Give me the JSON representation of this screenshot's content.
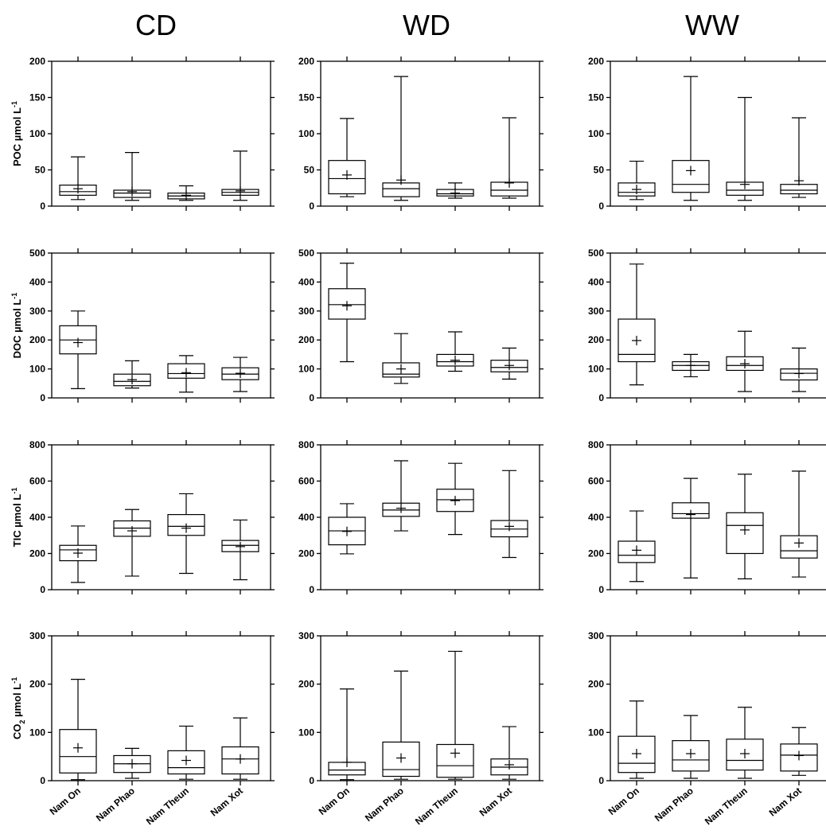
{
  "chart_data": {
    "type": "box",
    "columns": [
      "CD",
      "WD",
      "WW"
    ],
    "categories": [
      "Nam On",
      "Nam Phao",
      "Nam Theun",
      "Nam Xot"
    ],
    "rows": [
      {
        "variable": "POC",
        "ylabel_main": "POC ",
        "ylabel_sub": "",
        "ylabel_tail": "µmol L",
        "ylabel_sup": "-1",
        "ylim": [
          0,
          200
        ],
        "ticks": [
          "0",
          "50",
          "100",
          "150",
          "200"
        ],
        "tick_values": [
          0,
          50,
          100,
          150,
          200
        ],
        "panels": [
          {
            "column": "CD",
            "boxes": [
              {
                "category": "Nam On",
                "min": 9,
                "q1": 15,
                "median": 20,
                "q3": 29,
                "max": 68,
                "mean": 24
              },
              {
                "category": "Nam Phao",
                "min": 8,
                "q1": 12,
                "median": 18,
                "q3": 22,
                "max": 74,
                "mean": 20
              },
              {
                "category": "Nam Theun",
                "min": 8,
                "q1": 10,
                "median": 14,
                "q3": 18,
                "max": 28,
                "mean": 15
              },
              {
                "category": "Nam Xot",
                "min": 8,
                "q1": 15,
                "median": 19,
                "q3": 23,
                "max": 76,
                "mean": 21
              }
            ]
          },
          {
            "column": "WD",
            "boxes": [
              {
                "category": "Nam On",
                "min": 13,
                "q1": 17,
                "median": 38,
                "q3": 63,
                "max": 121,
                "mean": 43
              },
              {
                "category": "Nam Phao",
                "min": 8,
                "q1": 13,
                "median": 24,
                "q3": 32,
                "max": 179,
                "mean": 36
              },
              {
                "category": "Nam Theun",
                "min": 11,
                "q1": 14,
                "median": 17,
                "q3": 23,
                "max": 32,
                "mean": 18
              },
              {
                "category": "Nam Xot",
                "min": 11,
                "q1": 14,
                "median": 22,
                "q3": 33,
                "max": 122,
                "mean": 32
              }
            ]
          },
          {
            "column": "WW",
            "boxes": [
              {
                "category": "Nam On",
                "min": 9,
                "q1": 14,
                "median": 19,
                "q3": 32,
                "max": 62,
                "mean": 23
              },
              {
                "category": "Nam Phao",
                "min": 8,
                "q1": 19,
                "median": 30,
                "q3": 63,
                "max": 179,
                "mean": 49
              },
              {
                "category": "Nam Theun",
                "min": 8,
                "q1": 15,
                "median": 22,
                "q3": 33,
                "max": 150,
                "mean": 30
              },
              {
                "category": "Nam Xot",
                "min": 12,
                "q1": 17,
                "median": 22,
                "q3": 30,
                "max": 122,
                "mean": 35
              }
            ]
          }
        ]
      },
      {
        "variable": "DOC",
        "ylabel_main": "DOC ",
        "ylabel_sub": "",
        "ylabel_tail": "µmol L",
        "ylabel_sup": "-1",
        "ylim": [
          0,
          500
        ],
        "ticks": [
          "0",
          "100",
          "200",
          "300",
          "400",
          "500"
        ],
        "tick_values": [
          0,
          100,
          200,
          300,
          400,
          500
        ],
        "panels": [
          {
            "column": "CD",
            "boxes": [
              {
                "category": "Nam On",
                "min": 32,
                "q1": 152,
                "median": 200,
                "q3": 249,
                "max": 300,
                "mean": 191
              },
              {
                "category": "Nam Phao",
                "min": 34,
                "q1": 42,
                "median": 57,
                "q3": 82,
                "max": 128,
                "mean": 63
              },
              {
                "category": "Nam Theun",
                "min": 20,
                "q1": 68,
                "median": 84,
                "q3": 118,
                "max": 146,
                "mean": 87
              },
              {
                "category": "Nam Xot",
                "min": 22,
                "q1": 63,
                "median": 82,
                "q3": 104,
                "max": 140,
                "mean": 85
              }
            ]
          },
          {
            "column": "WD",
            "boxes": [
              {
                "category": "Nam On",
                "min": 125,
                "q1": 272,
                "median": 322,
                "q3": 377,
                "max": 465,
                "mean": 318
              },
              {
                "category": "Nam Phao",
                "min": 50,
                "q1": 72,
                "median": 82,
                "q3": 121,
                "max": 222,
                "mean": 100
              },
              {
                "category": "Nam Theun",
                "min": 92,
                "q1": 110,
                "median": 125,
                "q3": 150,
                "max": 228,
                "mean": 130
              },
              {
                "category": "Nam Xot",
                "min": 65,
                "q1": 90,
                "median": 105,
                "q3": 130,
                "max": 172,
                "mean": 112
              }
            ]
          },
          {
            "column": "WW",
            "boxes": [
              {
                "category": "Nam On",
                "min": 45,
                "q1": 125,
                "median": 150,
                "q3": 272,
                "max": 462,
                "mean": 198
              },
              {
                "category": "Nam Phao",
                "min": 73,
                "q1": 95,
                "median": 112,
                "q3": 125,
                "max": 150,
                "mean": 112
              },
              {
                "category": "Nam Theun",
                "min": 22,
                "q1": 95,
                "median": 112,
                "q3": 142,
                "max": 230,
                "mean": 118
              },
              {
                "category": "Nam Xot",
                "min": 22,
                "q1": 62,
                "median": 85,
                "q3": 100,
                "max": 172,
                "mean": 84
              }
            ]
          }
        ]
      },
      {
        "variable": "TIC",
        "ylabel_main": "TIC ",
        "ylabel_sub": "",
        "ylabel_tail": "µmol L",
        "ylabel_sup": "-1",
        "ylim": [
          0,
          800
        ],
        "ticks": [
          "0",
          "200",
          "400",
          "600",
          "800"
        ],
        "tick_values": [
          0,
          200,
          400,
          600,
          800
        ],
        "panels": [
          {
            "column": "CD",
            "boxes": [
              {
                "category": "Nam On",
                "min": 40,
                "q1": 160,
                "median": 220,
                "q3": 245,
                "max": 352,
                "mean": 202
              },
              {
                "category": "Nam Phao",
                "min": 75,
                "q1": 295,
                "median": 340,
                "q3": 380,
                "max": 443,
                "mean": 325
              },
              {
                "category": "Nam Theun",
                "min": 90,
                "q1": 300,
                "median": 350,
                "q3": 415,
                "max": 530,
                "mean": 340
              },
              {
                "category": "Nam Xot",
                "min": 55,
                "q1": 210,
                "median": 245,
                "q3": 272,
                "max": 385,
                "mean": 238
              }
            ]
          },
          {
            "column": "WD",
            "boxes": [
              {
                "category": "Nam On",
                "min": 198,
                "q1": 248,
                "median": 325,
                "q3": 400,
                "max": 475,
                "mean": 322
              },
              {
                "category": "Nam Phao",
                "min": 325,
                "q1": 405,
                "median": 440,
                "q3": 478,
                "max": 712,
                "mean": 450
              },
              {
                "category": "Nam Theun",
                "min": 305,
                "q1": 432,
                "median": 497,
                "q3": 555,
                "max": 698,
                "mean": 492
              },
              {
                "category": "Nam Xot",
                "min": 178,
                "q1": 292,
                "median": 335,
                "q3": 382,
                "max": 658,
                "mean": 350
              }
            ]
          },
          {
            "column": "WW",
            "boxes": [
              {
                "category": "Nam On",
                "min": 45,
                "q1": 150,
                "median": 190,
                "q3": 268,
                "max": 435,
                "mean": 218
              },
              {
                "category": "Nam Phao",
                "min": 65,
                "q1": 395,
                "median": 420,
                "q3": 480,
                "max": 615,
                "mean": 415
              },
              {
                "category": "Nam Theun",
                "min": 60,
                "q1": 200,
                "median": 355,
                "q3": 425,
                "max": 638,
                "mean": 330
              },
              {
                "category": "Nam Xot",
                "min": 70,
                "q1": 175,
                "median": 215,
                "q3": 298,
                "max": 655,
                "mean": 258
              }
            ]
          }
        ]
      },
      {
        "variable": "CO2",
        "ylabel_main": "CO",
        "ylabel_sub": "2",
        "ylabel_tail": " µmol L",
        "ylabel_sup": "-1",
        "ylim": [
          0,
          300
        ],
        "ticks": [
          "0",
          "100",
          "200",
          "300"
        ],
        "tick_values": [
          0,
          100,
          200,
          300
        ],
        "panels": [
          {
            "column": "CD",
            "boxes": [
              {
                "category": "Nam On",
                "min": 2,
                "q1": 16,
                "median": 50,
                "q3": 106,
                "max": 210,
                "mean": 68
              },
              {
                "category": "Nam Phao",
                "min": 5,
                "q1": 17,
                "median": 35,
                "q3": 52,
                "max": 67,
                "mean": 35
              },
              {
                "category": "Nam Theun",
                "min": 3,
                "q1": 14,
                "median": 27,
                "q3": 62,
                "max": 113,
                "mean": 42
              },
              {
                "category": "Nam Xot",
                "min": 3,
                "q1": 14,
                "median": 45,
                "q3": 70,
                "max": 130,
                "mean": 45
              }
            ]
          },
          {
            "column": "WD",
            "boxes": [
              {
                "category": "Nam On",
                "min": 2,
                "q1": 12,
                "median": 22,
                "q3": 38,
                "max": 190,
                "mean": 38
              },
              {
                "category": "Nam Phao",
                "min": 3,
                "q1": 9,
                "median": 23,
                "q3": 80,
                "max": 227,
                "mean": 47
              },
              {
                "category": "Nam Theun",
                "min": 3,
                "q1": 7,
                "median": 31,
                "q3": 75,
                "max": 268,
                "mean": 57
              },
              {
                "category": "Nam Xot",
                "min": 3,
                "q1": 12,
                "median": 28,
                "q3": 45,
                "max": 112,
                "mean": 33
              }
            ]
          },
          {
            "column": "WW",
            "boxes": [
              {
                "category": "Nam On",
                "min": 5,
                "q1": 17,
                "median": 36,
                "q3": 92,
                "max": 165,
                "mean": 56
              },
              {
                "category": "Nam Phao",
                "min": 5,
                "q1": 20,
                "median": 43,
                "q3": 83,
                "max": 135,
                "mean": 56
              },
              {
                "category": "Nam Theun",
                "min": 5,
                "q1": 22,
                "median": 42,
                "q3": 86,
                "max": 152,
                "mean": 56
              },
              {
                "category": "Nam Xot",
                "min": 11,
                "q1": 20,
                "median": 53,
                "q3": 76,
                "max": 110,
                "mean": 52
              }
            ]
          }
        ]
      }
    ]
  }
}
